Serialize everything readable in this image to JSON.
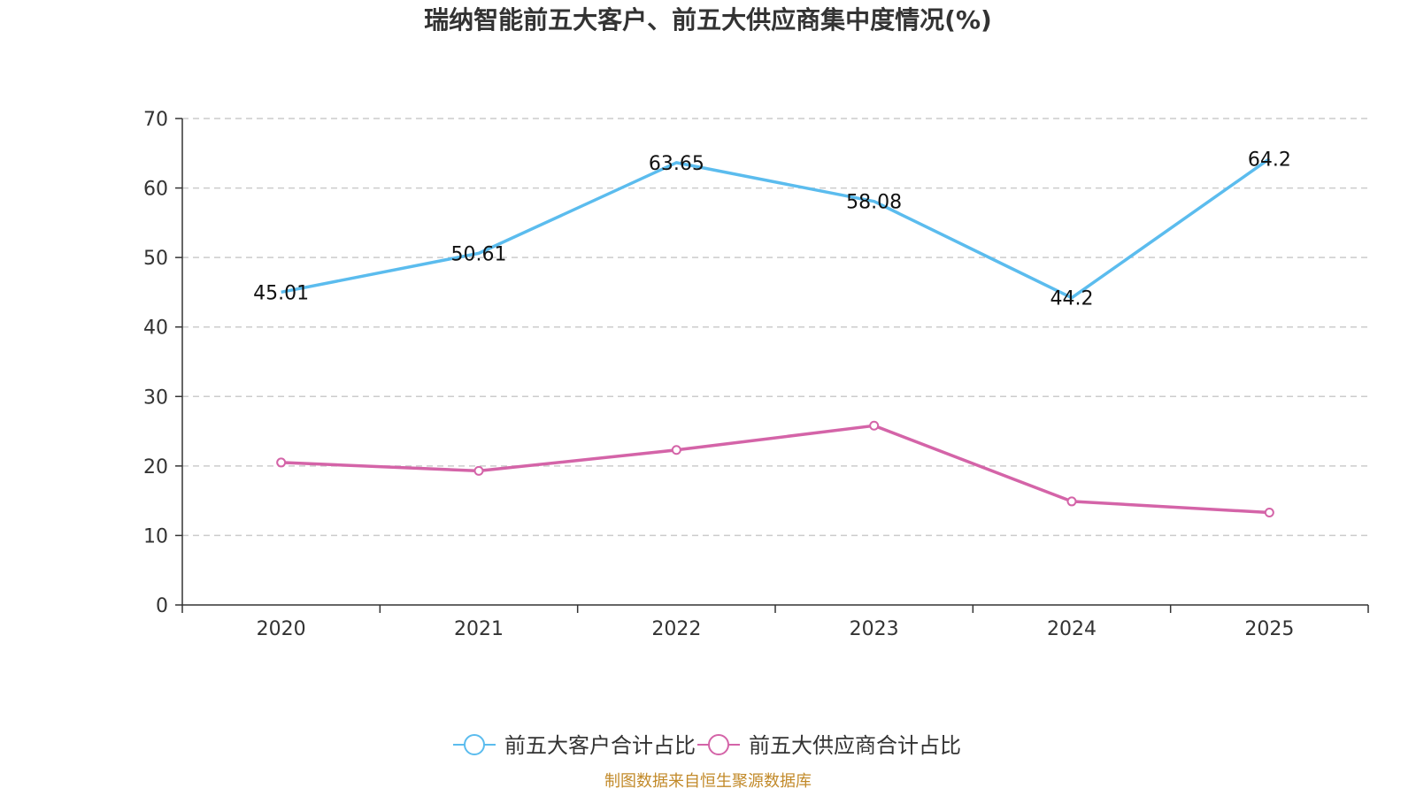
{
  "chart_data": {
    "type": "line",
    "title": "瑞纳智能前五大客户、前五大供应商集中度情况(%)",
    "categories": [
      "2020",
      "2021",
      "2022",
      "2023",
      "2024",
      "2025"
    ],
    "series": [
      {
        "name": "前五大客户合计占比",
        "color": "#5bbcee",
        "values": [
          45.01,
          50.61,
          63.65,
          58.08,
          44.2,
          64.2
        ],
        "data_labels": [
          "45.01",
          "50.61",
          "63.65",
          "58.08",
          "44.2",
          "64.2"
        ],
        "show_labels": true,
        "show_markers": false
      },
      {
        "name": "前五大供应商合计占比",
        "color": "#d464a8",
        "values": [
          20.5,
          19.3,
          22.3,
          25.8,
          14.9,
          13.3
        ],
        "show_labels": false,
        "show_markers": true
      }
    ],
    "ylim": [
      0,
      70
    ],
    "yticks": [
      0,
      10,
      20,
      30,
      40,
      50,
      60,
      70
    ],
    "ytick_labels": [
      "0",
      "10",
      "20",
      "30",
      "40",
      "50",
      "60",
      "70"
    ],
    "grid": true,
    "legend": "bottom-center",
    "xlabel": "",
    "ylabel": ""
  },
  "source_note": "制图数据来自恒生聚源数据库"
}
